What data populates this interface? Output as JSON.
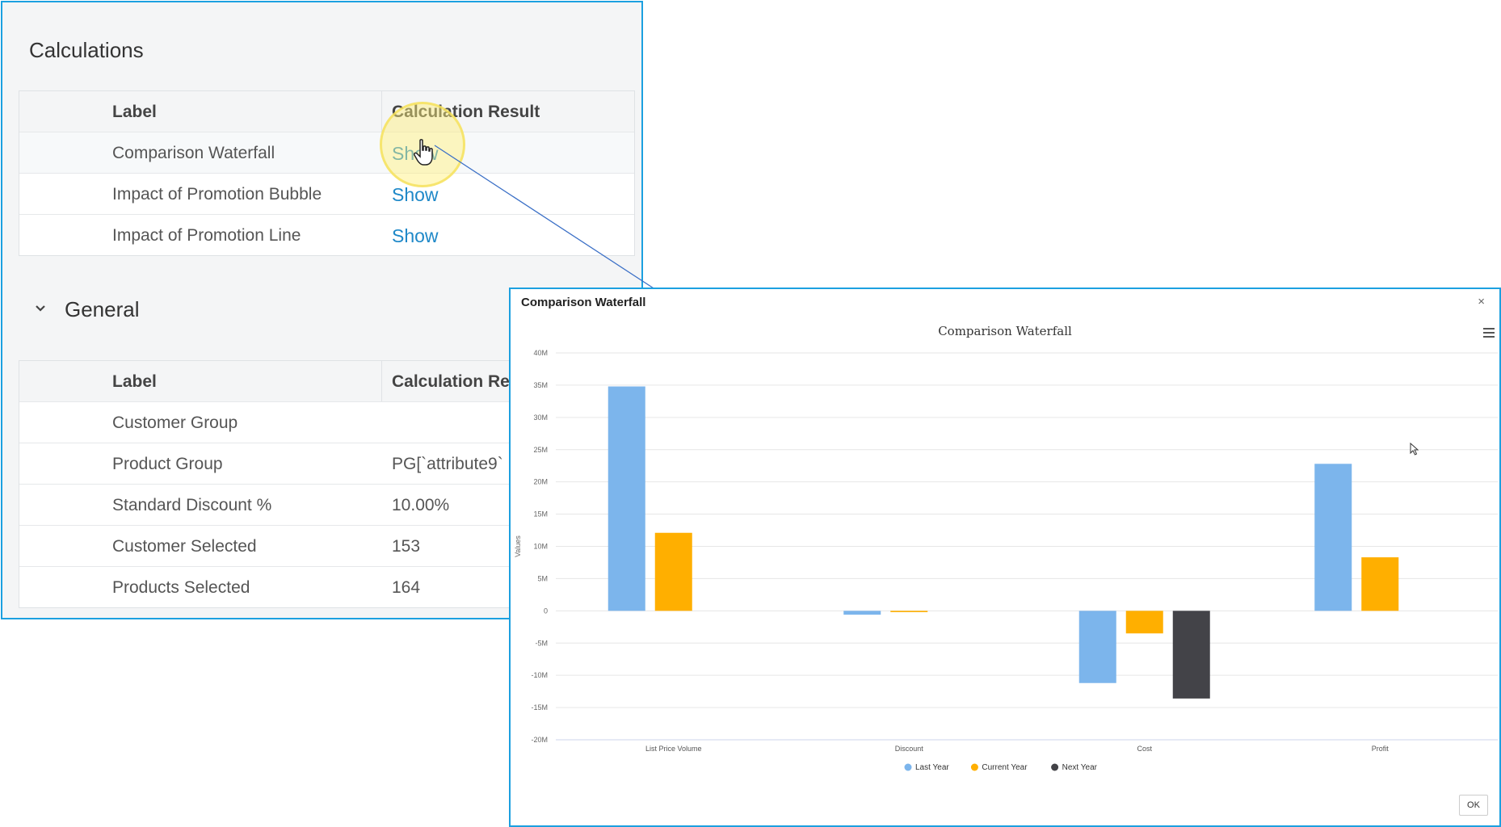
{
  "calculations": {
    "title": "Calculations",
    "headers": {
      "label": "Label",
      "result": "Calculation Result"
    },
    "rows": [
      {
        "label": "Comparison Waterfall",
        "result": "Show"
      },
      {
        "label": "Impact of Promotion Bubble",
        "result": "Show"
      },
      {
        "label": "Impact of Promotion Line",
        "result": "Show"
      }
    ]
  },
  "general": {
    "title": "General",
    "headers": {
      "label": "Label",
      "result": "Calculation Result"
    },
    "rows": [
      {
        "label": "Customer Group",
        "result": ""
      },
      {
        "label": "Product Group",
        "result": "PG[`attribute9`"
      },
      {
        "label": "Standard Discount %",
        "result": "10.00%"
      },
      {
        "label": "Customer Selected",
        "result": "153"
      },
      {
        "label": "Products Selected",
        "result": "164"
      }
    ]
  },
  "dialog": {
    "title": "Comparison Waterfall",
    "close": "×",
    "ok_label": "OK"
  },
  "chart_data": {
    "type": "bar",
    "title": "Comparison Waterfall",
    "ylabel": "Values",
    "xlabel": "",
    "categories": [
      "List Price Volume",
      "Discount",
      "Cost",
      "Profit"
    ],
    "ylim": [
      -20,
      40
    ],
    "yticks": [
      40,
      35,
      30,
      25,
      20,
      15,
      10,
      5,
      0,
      -5,
      -10,
      -15,
      -20
    ],
    "ytick_labels": [
      "40M",
      "35M",
      "30M",
      "25M",
      "20M",
      "15M",
      "10M",
      "5M",
      "0",
      "-5M",
      "-10M",
      "-15M",
      "-20M"
    ],
    "unit": "M",
    "series": [
      {
        "name": "Last Year",
        "color": "#7cb5ec",
        "values": [
          34.8,
          -0.6,
          -11.2,
          22.8
        ]
      },
      {
        "name": "Current Year",
        "color": "#ffaf00",
        "values": [
          12.1,
          -0.2,
          -3.5,
          8.3
        ]
      },
      {
        "name": "Next Year",
        "color": "#434348",
        "values": [
          0,
          0,
          -13.6,
          0
        ]
      }
    ],
    "legend_position": "bottom-center"
  }
}
